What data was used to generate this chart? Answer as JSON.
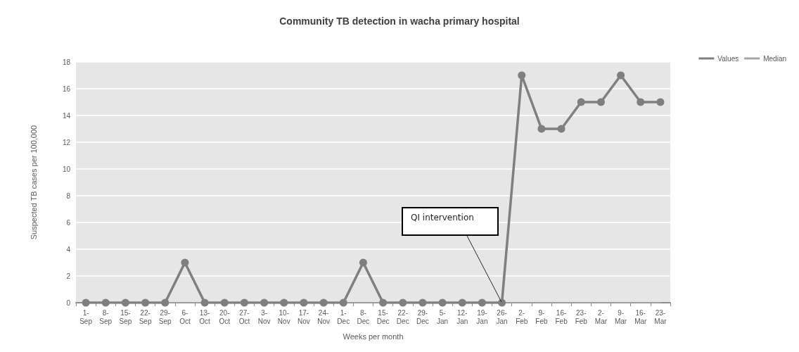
{
  "chart_data": {
    "type": "line",
    "title": "Community TB detection in wacha primary hospital",
    "xlabel": "Weeks per month",
    "ylabel": "Suspected TB cases per 100,000",
    "categories": [
      "1-Sep",
      "8-Sep",
      "15-Sep",
      "22-Sep",
      "29-Sep",
      "6-Oct",
      "13-Oct",
      "20-Oct",
      "27-Oct",
      "3-Nov",
      "10-Nov",
      "17-Nov",
      "24-Nov",
      "1-Dec",
      "8-Dec",
      "15-Dec",
      "22-Dec",
      "29-Dec",
      "5-Jan",
      "12-Jan",
      "19-Jan",
      "26-Jan",
      "2-Feb",
      "9-Feb",
      "16-Feb",
      "23-Feb",
      "2-Mar",
      "9-Mar",
      "16-Mar",
      "23-Mar"
    ],
    "series": [
      {
        "name": "Values",
        "color": "#7f7f7f",
        "marker": "circle",
        "values": [
          0,
          0,
          0,
          0,
          0,
          3,
          0,
          0,
          0,
          0,
          0,
          0,
          0,
          0,
          3,
          0,
          0,
          0,
          0,
          0,
          0,
          0,
          17,
          13,
          13,
          15,
          15,
          17,
          15,
          15
        ]
      },
      {
        "name": "Median",
        "color": "#a6a6a6",
        "marker": "none",
        "values": [
          0,
          0,
          0,
          0,
          0,
          0,
          0,
          0,
          0,
          0,
          0,
          0,
          0,
          0,
          0,
          0,
          0,
          0,
          0,
          0,
          0,
          0,
          0,
          0,
          0,
          0,
          0,
          0,
          0,
          0
        ]
      }
    ],
    "ylim": [
      0,
      18
    ],
    "yticks": [
      0,
      2,
      4,
      6,
      8,
      10,
      12,
      14,
      16,
      18
    ],
    "grid": "y",
    "legend": "top right",
    "annotations": [
      "QI intervention"
    ]
  }
}
